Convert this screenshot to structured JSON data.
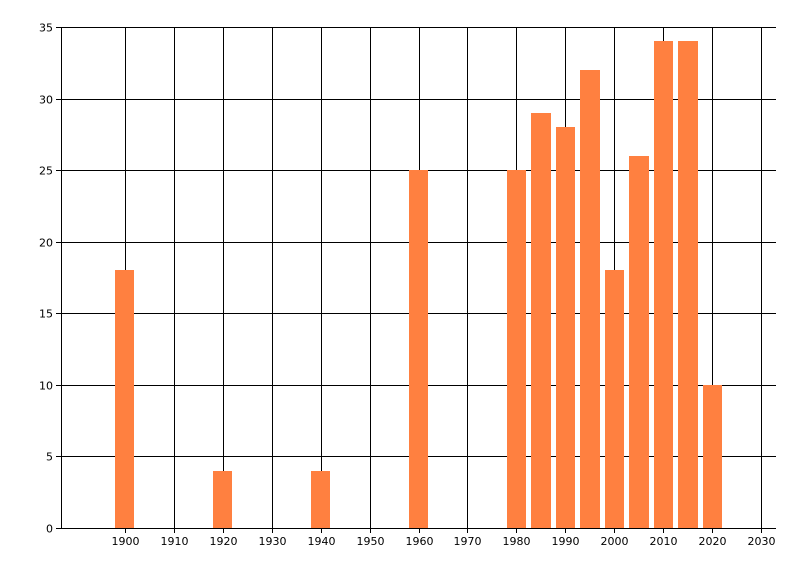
{
  "chart_data": {
    "type": "bar",
    "title": "",
    "xlabel": "",
    "ylabel": "",
    "x": [
      1900,
      1920,
      1940,
      1960,
      1980,
      1985,
      1990,
      1995,
      2000,
      2005,
      2010,
      2015,
      2020
    ],
    "values": [
      18,
      4,
      4,
      25,
      25,
      29,
      28,
      32,
      18,
      26,
      34,
      34,
      10
    ],
    "bar_width_years": 4,
    "xlim": [
      1887,
      2033
    ],
    "ylim": [
      0,
      35
    ],
    "x_ticks": [
      1900,
      1910,
      1920,
      1930,
      1940,
      1950,
      1960,
      1970,
      1980,
      1990,
      2000,
      2010,
      2020,
      2030
    ],
    "y_ticks": [
      0,
      5,
      10,
      15,
      20,
      25,
      30,
      35
    ],
    "grid": true,
    "bar_color": "#ff8040"
  }
}
